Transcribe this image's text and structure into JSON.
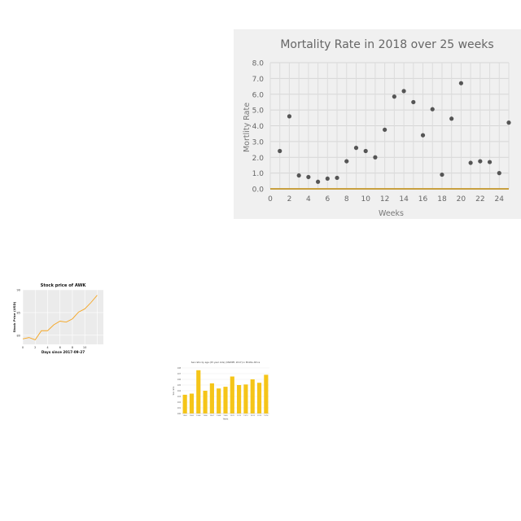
{
  "chart_data": [
    {
      "type": "scatter",
      "title": "Mortality  Rate  in 2018  over 25  weeks",
      "xlabel": "Weeks",
      "ylabel": "Mortlity  Rate",
      "xlim": [
        0,
        25
      ],
      "ylim": [
        0,
        8
      ],
      "x_ticks": [
        "0",
        "2",
        "4",
        "6",
        "8",
        "10",
        "12",
        "14",
        "16",
        "18",
        "20",
        "22",
        "24"
      ],
      "y_ticks": [
        "0.0",
        "1.0",
        "2.0",
        "3.0",
        "4.0",
        "5.0",
        "6.0",
        "7.0",
        "8.0"
      ],
      "grid": true,
      "point_color": "#555555",
      "axis_color": "#c8a040",
      "background": "#f0f0f0",
      "points": [
        {
          "x": 1,
          "y": 2.4
        },
        {
          "x": 2,
          "y": 4.6
        },
        {
          "x": 3,
          "y": 0.85
        },
        {
          "x": 4,
          "y": 0.75
        },
        {
          "x": 5,
          "y": 0.45
        },
        {
          "x": 6,
          "y": 0.65
        },
        {
          "x": 7,
          "y": 0.7
        },
        {
          "x": 8,
          "y": 1.75
        },
        {
          "x": 9,
          "y": 2.6
        },
        {
          "x": 10,
          "y": 2.4
        },
        {
          "x": 11,
          "y": 2.0
        },
        {
          "x": 12,
          "y": 3.75
        },
        {
          "x": 13,
          "y": 5.85
        },
        {
          "x": 14,
          "y": 6.2
        },
        {
          "x": 15,
          "y": 5.5
        },
        {
          "x": 16,
          "y": 3.4
        },
        {
          "x": 17,
          "y": 5.05
        },
        {
          "x": 18,
          "y": 0.9
        },
        {
          "x": 19,
          "y": 4.45
        },
        {
          "x": 20,
          "y": 6.7
        },
        {
          "x": 21,
          "y": 1.65
        },
        {
          "x": 22,
          "y": 1.75
        },
        {
          "x": 23,
          "y": 1.7
        },
        {
          "x": 24,
          "y": 1.0
        },
        {
          "x": 25,
          "y": 4.2
        }
      ]
    },
    {
      "type": "line",
      "title": "Stock price of AWK",
      "xlabel": "Days since 2017-09-27",
      "ylabel": "Stock Price (USD)",
      "xlim": [
        0,
        13
      ],
      "ylim": [
        78,
        90
      ],
      "x_ticks": [
        "0",
        "2",
        "4",
        "6",
        "8",
        "10"
      ],
      "y_ticks": [
        "80",
        "85",
        "90"
      ],
      "grid": true,
      "line_color": "#f5a623",
      "background": "#ebebeb",
      "x": [
        0,
        1,
        2,
        3,
        4,
        5,
        6,
        7,
        8,
        9,
        10,
        11,
        12
      ],
      "values": [
        79.2,
        79.5,
        79.0,
        81.0,
        81.0,
        82.3,
        83.1,
        82.9,
        83.6,
        85.1,
        85.8,
        87.2,
        88.8
      ]
    },
    {
      "type": "bar",
      "title": "Sex ratio by age (25 year olds) (UNWPP, 2017) in Middle Africa",
      "xlabel": "Years",
      "ylabel": "Sex ratio",
      "ylim": [
        100,
        108
      ],
      "y_ticks": [
        "100",
        "101",
        "102",
        "103",
        "104",
        "105",
        "106",
        "107",
        "108"
      ],
      "bar_color": "#f5c518",
      "categories": [
        "1960",
        "1962",
        "1964",
        "1966",
        "1967",
        "1968",
        "1969",
        "1970",
        "1972",
        "1973",
        "1974",
        "1975",
        "1976"
      ],
      "values": [
        103.3,
        103.5,
        107.6,
        104.0,
        105.3,
        104.4,
        104.7,
        106.5,
        105.0,
        105.1,
        106.0,
        105.4,
        106.8
      ]
    }
  ]
}
